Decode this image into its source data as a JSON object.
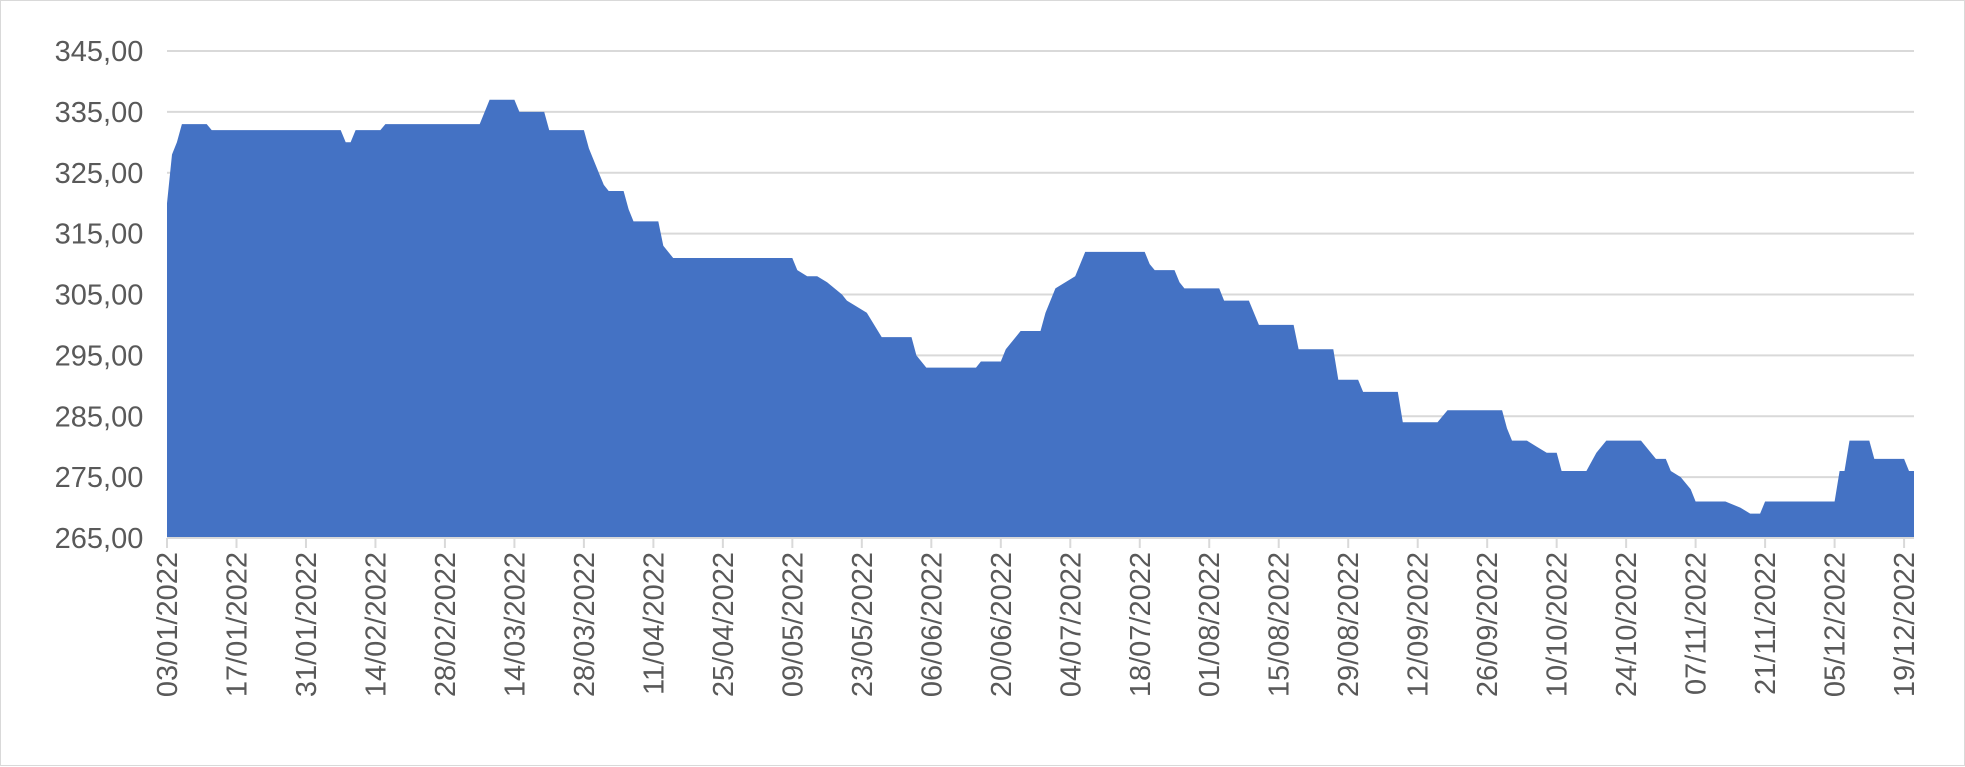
{
  "chart_data": {
    "type": "area",
    "title": "",
    "xlabel": "",
    "ylabel": "",
    "ylim": [
      265,
      345
    ],
    "y_ticks": [
      "265,00",
      "275,00",
      "285,00",
      "295,00",
      "305,00",
      "315,00",
      "325,00",
      "335,00",
      "345,00"
    ],
    "x_ticks": [
      "03/01/2022",
      "17/01/2022",
      "31/01/2022",
      "14/02/2022",
      "28/02/2022",
      "14/03/2022",
      "28/03/2022",
      "11/04/2022",
      "25/04/2022",
      "09/05/2022",
      "23/05/2022",
      "06/06/2022",
      "20/06/2022",
      "04/07/2022",
      "18/07/2022",
      "01/08/2022",
      "15/08/2022",
      "29/08/2022",
      "12/09/2022",
      "26/09/2022",
      "10/10/2022",
      "24/10/2022",
      "07/11/2022",
      "21/11/2022",
      "05/12/2022",
      "19/12/2022"
    ],
    "x_range": [
      "2022-01-03",
      "2022-12-21"
    ],
    "grid": true,
    "legend": "none",
    "color": "#4472c4",
    "series": [
      {
        "points": [
          [
            "2022-01-03",
            320
          ],
          [
            "2022-01-04",
            328
          ],
          [
            "2022-01-05",
            330
          ],
          [
            "2022-01-06",
            333
          ],
          [
            "2022-01-11",
            333
          ],
          [
            "2022-01-12",
            332
          ],
          [
            "2022-02-07",
            332
          ],
          [
            "2022-02-08",
            330
          ],
          [
            "2022-02-09",
            330
          ],
          [
            "2022-02-10",
            332
          ],
          [
            "2022-02-15",
            332
          ],
          [
            "2022-02-16",
            333
          ],
          [
            "2022-03-07",
            333
          ],
          [
            "2022-03-09",
            337
          ],
          [
            "2022-03-14",
            337
          ],
          [
            "2022-03-15",
            335
          ],
          [
            "2022-03-20",
            335
          ],
          [
            "2022-03-21",
            332
          ],
          [
            "2022-03-28",
            332
          ],
          [
            "2022-03-29",
            329
          ],
          [
            "2022-03-31",
            325
          ],
          [
            "2022-04-01",
            323
          ],
          [
            "2022-04-02",
            322
          ],
          [
            "2022-04-05",
            322
          ],
          [
            "2022-04-06",
            319
          ],
          [
            "2022-04-07",
            317
          ],
          [
            "2022-04-12",
            317
          ],
          [
            "2022-04-13",
            313
          ],
          [
            "2022-04-15",
            311
          ],
          [
            "2022-05-09",
            311
          ],
          [
            "2022-05-10",
            309
          ],
          [
            "2022-05-12",
            308
          ],
          [
            "2022-05-14",
            308
          ],
          [
            "2022-05-16",
            307
          ],
          [
            "2022-05-19",
            305
          ],
          [
            "2022-05-20",
            304
          ],
          [
            "2022-05-24",
            302
          ],
          [
            "2022-05-27",
            298
          ],
          [
            "2022-06-02",
            298
          ],
          [
            "2022-06-03",
            295
          ],
          [
            "2022-06-05",
            293
          ],
          [
            "2022-06-15",
            293
          ],
          [
            "2022-06-16",
            294
          ],
          [
            "2022-06-20",
            294
          ],
          [
            "2022-06-21",
            296
          ],
          [
            "2022-06-24",
            299
          ],
          [
            "2022-06-28",
            299
          ],
          [
            "2022-06-29",
            302
          ],
          [
            "2022-07-01",
            306
          ],
          [
            "2022-07-05",
            308
          ],
          [
            "2022-07-06",
            310
          ],
          [
            "2022-07-07",
            312
          ],
          [
            "2022-07-19",
            312
          ],
          [
            "2022-07-20",
            310
          ],
          [
            "2022-07-21",
            309
          ],
          [
            "2022-07-25",
            309
          ],
          [
            "2022-07-26",
            307
          ],
          [
            "2022-07-27",
            306
          ],
          [
            "2022-08-03",
            306
          ],
          [
            "2022-08-04",
            304
          ],
          [
            "2022-08-09",
            304
          ],
          [
            "2022-08-11",
            300
          ],
          [
            "2022-08-18",
            300
          ],
          [
            "2022-08-19",
            296
          ],
          [
            "2022-08-26",
            296
          ],
          [
            "2022-08-27",
            291
          ],
          [
            "2022-08-31",
            291
          ],
          [
            "2022-09-01",
            289
          ],
          [
            "2022-09-08",
            289
          ],
          [
            "2022-09-09",
            284
          ],
          [
            "2022-09-16",
            284
          ],
          [
            "2022-09-18",
            286
          ],
          [
            "2022-09-29",
            286
          ],
          [
            "2022-09-30",
            283
          ],
          [
            "2022-10-01",
            281
          ],
          [
            "2022-10-04",
            281
          ],
          [
            "2022-10-06",
            280
          ],
          [
            "2022-10-08",
            279
          ],
          [
            "2022-10-10",
            279
          ],
          [
            "2022-10-11",
            276
          ],
          [
            "2022-10-14",
            276
          ],
          [
            "2022-10-16",
            276
          ],
          [
            "2022-10-18",
            279
          ],
          [
            "2022-10-20",
            281
          ],
          [
            "2022-10-27",
            281
          ],
          [
            "2022-10-30",
            278
          ],
          [
            "2022-11-01",
            278
          ],
          [
            "2022-11-02",
            276
          ],
          [
            "2022-11-04",
            275
          ],
          [
            "2022-11-06",
            273
          ],
          [
            "2022-11-07",
            271
          ],
          [
            "2022-11-13",
            271
          ],
          [
            "2022-11-16",
            270
          ],
          [
            "2022-11-18",
            269
          ],
          [
            "2022-11-20",
            269
          ],
          [
            "2022-11-21",
            271
          ],
          [
            "2022-11-25",
            271
          ],
          [
            "2022-12-05",
            271
          ],
          [
            "2022-12-06",
            276
          ],
          [
            "2022-12-07",
            276
          ],
          [
            "2022-12-08",
            281
          ],
          [
            "2022-12-11",
            281
          ],
          [
            "2022-12-12",
            281
          ],
          [
            "2022-12-13",
            278
          ],
          [
            "2022-12-19",
            278
          ],
          [
            "2022-12-20",
            276
          ],
          [
            "2022-12-21",
            276
          ]
        ]
      }
    ]
  }
}
